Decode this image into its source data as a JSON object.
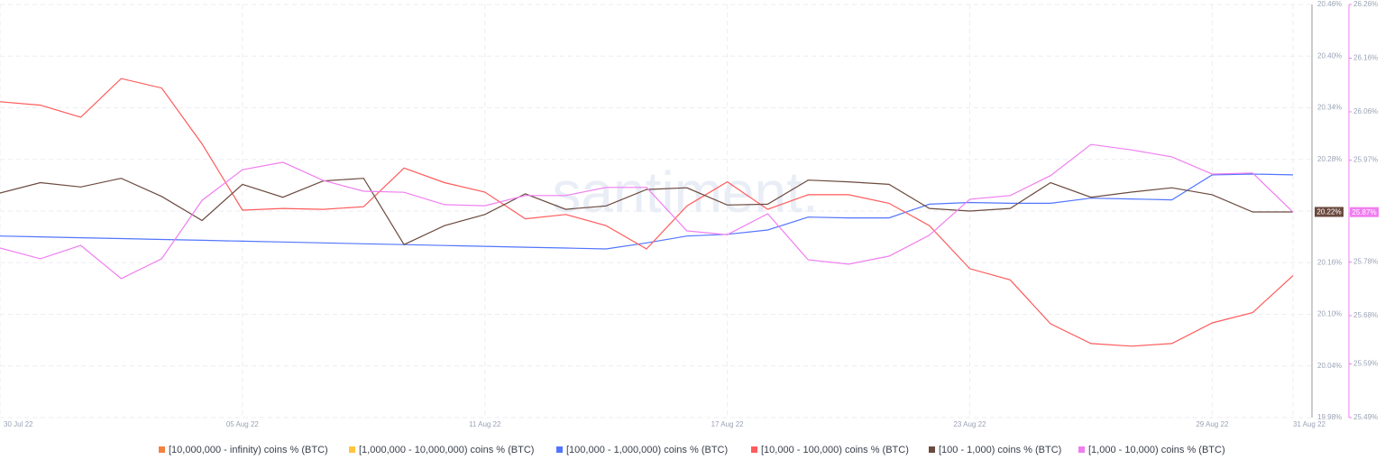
{
  "chart_data": {
    "type": "line",
    "watermark": "santiment.",
    "categories": [
      "30 Jul 22",
      null,
      null,
      null,
      null,
      null,
      "05 Aug 22",
      null,
      null,
      null,
      null,
      null,
      "11 Aug 22",
      null,
      null,
      null,
      null,
      null,
      "17 Aug 22",
      null,
      null,
      null,
      null,
      null,
      "23 Aug 22",
      null,
      null,
      null,
      null,
      null,
      "29 Aug 22",
      null,
      "31 Aug 22"
    ],
    "ylim": [
      19.98,
      20.46
    ],
    "yticks": [
      {
        "value": 19.98,
        "label": "19.98%"
      },
      {
        "value": 20.04,
        "label": "20.04%"
      },
      {
        "value": 20.1,
        "label": "20.10%"
      },
      {
        "value": 20.16,
        "label": "20.16%"
      },
      {
        "value": 20.22,
        "label": "20.22%"
      },
      {
        "value": 20.28,
        "label": "20.28%"
      },
      {
        "value": 20.34,
        "label": "20.34%"
      },
      {
        "value": 20.4,
        "label": "20.40%"
      },
      {
        "value": 20.46,
        "label": "20.46%"
      }
    ],
    "y2lim": [
      25.49,
      26.26
    ],
    "y2ticks": [
      {
        "value": 25.49,
        "label": "25.49%"
      },
      {
        "value": 25.59,
        "label": "25.59%"
      },
      {
        "value": 25.68,
        "label": "25.68%"
      },
      {
        "value": 25.78,
        "label": "25.78%"
      },
      {
        "value": 25.87,
        "label": "25.87%"
      },
      {
        "value": 25.97,
        "label": "25.97%"
      },
      {
        "value": 26.06,
        "label": "26.06%"
      },
      {
        "value": 26.16,
        "label": "26.16%"
      },
      {
        "value": 26.26,
        "label": "26.26%"
      }
    ],
    "grid": true,
    "legend": "bottom",
    "series": [
      {
        "name": "[10,000,000 - infinity) coins % (BTC)",
        "color": "#f5813f"
      },
      {
        "name": "[1,000,000 - 10,000,000) coins % (BTC)",
        "color": "#ffc53d"
      },
      {
        "name": "[100,000  - 1,000,000) coins % (BTC)",
        "color": "#5275ff",
        "values": [
          20.191,
          20.19,
          20.189,
          20.188,
          20.187,
          20.186,
          20.185,
          20.184,
          20.183,
          20.182,
          20.181,
          20.18,
          20.179,
          20.178,
          20.177,
          20.176,
          20.183,
          20.191,
          20.193,
          20.198,
          20.213,
          20.212,
          20.212,
          20.228,
          20.23,
          20.229,
          20.229,
          20.235,
          20.234,
          20.233,
          20.262,
          20.263,
          20.262
        ]
      },
      {
        "name": "[10,000 - 100,000) coins % (BTC)",
        "color": "#ff5b5b",
        "values": [
          20.347,
          20.343,
          20.329,
          20.374,
          20.363,
          20.298,
          20.221,
          20.223,
          20.222,
          20.225,
          20.27,
          20.253,
          20.242,
          20.211,
          20.216,
          20.203,
          20.176,
          20.226,
          20.254,
          20.222,
          20.239,
          20.239,
          20.229,
          20.203,
          20.153,
          20.14,
          20.089,
          20.066,
          20.063,
          20.066,
          20.09,
          20.102,
          20.145
        ]
      },
      {
        "name": "[100 - 1,000) coins % (BTC)",
        "color": "#6b4a3f",
        "values": [
          20.241,
          20.253,
          20.248,
          20.258,
          20.237,
          20.209,
          20.251,
          20.236,
          20.255,
          20.258,
          20.181,
          20.203,
          20.216,
          20.24,
          20.222,
          20.226,
          20.245,
          20.247,
          20.227,
          20.228,
          20.256,
          20.254,
          20.251,
          20.223,
          20.22,
          20.223,
          20.253,
          20.236,
          20.242,
          20.247,
          20.239,
          20.219,
          20.219
        ],
        "value_labels": [
          null,
          null,
          null,
          null,
          null,
          null,
          null,
          null,
          null,
          null,
          null,
          null,
          null,
          null,
          null,
          null,
          null,
          null,
          null,
          null,
          null,
          null,
          null,
          null,
          null,
          null,
          null,
          null,
          null,
          null,
          null,
          null,
          "20.22%"
        ]
      },
      {
        "name": "[1,000 - 10,000) coins % (BTC)",
        "color": "#f07ef0",
        "axis": "y2",
        "values": [
          25.806,
          25.786,
          25.811,
          25.749,
          25.786,
          25.895,
          25.952,
          25.966,
          25.932,
          25.912,
          25.91,
          25.887,
          25.885,
          25.904,
          25.904,
          25.919,
          25.919,
          25.838,
          25.831,
          25.87,
          25.784,
          25.776,
          25.791,
          25.83,
          25.897,
          25.904,
          25.941,
          25.999,
          25.989,
          25.976,
          25.944,
          25.946,
          25.873
        ],
        "value_labels": [
          null,
          null,
          null,
          null,
          null,
          null,
          null,
          null,
          null,
          null,
          null,
          null,
          null,
          null,
          null,
          null,
          null,
          null,
          null,
          null,
          null,
          null,
          null,
          null,
          null,
          null,
          null,
          null,
          null,
          null,
          null,
          null,
          "25.87%"
        ]
      }
    ]
  }
}
